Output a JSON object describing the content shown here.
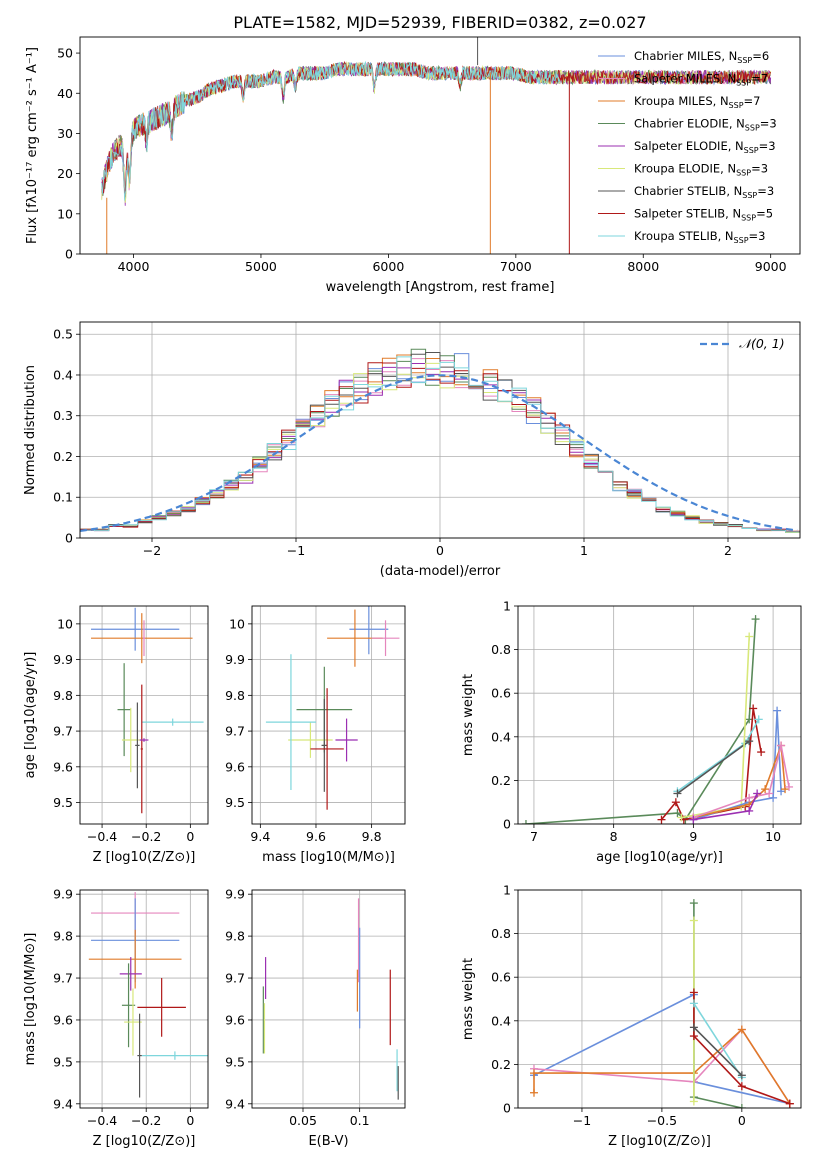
{
  "figure_title": "PLATE=1582, MJD=52939, FIBERID=0382, z=0.027",
  "colors": {
    "Chabrier MILES": "#6a8fdc",
    "Salpeter MILES": "#e586bd",
    "Kroupa MILES": "#e07b2a",
    "Chabrier ELODIE": "#5a8a5a",
    "Salpeter ELODIE": "#9b2fb2",
    "Kroupa ELODIE": "#d8e87a",
    "Chabrier STELIB": "#555555",
    "Salpeter STELIB": "#b01818",
    "Kroupa STELIB": "#7ed6dc",
    "normal": "#4a86d4"
  },
  "chart_data": [
    {
      "id": "spectrum",
      "type": "line",
      "title": "PLATE=1582, MJD=52939, FIBERID=0382, z=0.027",
      "xlabel": "wavelength [Angstrom, rest frame]",
      "ylabel": "Flux [fλ10⁻¹⁷ erg cm⁻² s⁻¹ A⁻¹]",
      "xlim": [
        3580,
        9230
      ],
      "ylim": [
        0,
        54
      ],
      "xticks": [
        4000,
        5000,
        6000,
        7000,
        8000,
        9000
      ],
      "yticks": [
        0,
        10,
        20,
        30,
        40,
        50
      ],
      "legend_position": "right",
      "continuum_x": [
        3750,
        3800,
        3850,
        3900,
        3950,
        4000,
        4050,
        4100,
        4200,
        4300,
        4400,
        4500,
        4600,
        4700,
        4800,
        4900,
        5000,
        5100,
        5200,
        5300,
        5400,
        5500,
        5600,
        5700,
        5800,
        5900,
        6000,
        6100,
        6200,
        6300,
        6400,
        6500,
        6600,
        6700,
        6800,
        6900,
        7000,
        7100,
        7200,
        7300,
        7400
      ],
      "continuum_y": [
        16,
        22,
        26,
        27,
        26,
        31,
        32,
        33,
        34,
        36,
        38,
        39,
        41,
        42,
        43,
        43,
        43,
        44,
        44,
        45,
        45,
        45,
        46,
        46,
        46,
        46,
        46,
        46,
        46,
        45,
        45,
        45,
        45,
        45,
        45,
        45,
        45,
        44,
        44,
        44,
        44
      ],
      "series": [
        {
          "name": "Chabrier MILES, N_SSP=6"
        },
        {
          "name": "Salpeter MILES, N_SSP=7"
        },
        {
          "name": "Kroupa MILES, N_SSP=7"
        },
        {
          "name": "Chabrier ELODIE, N_SSP=3"
        },
        {
          "name": "Salpeter ELODIE, N_SSP=3"
        },
        {
          "name": "Kroupa ELODIE, N_SSP=3"
        },
        {
          "name": "Chabrier STELIB, N_SSP=3"
        },
        {
          "name": "Salpeter STELIB, N_SSP=5"
        },
        {
          "name": "Kroupa STELIB, N_SSP=3"
        }
      ]
    },
    {
      "id": "residuals",
      "type": "line",
      "xlabel": "(data-model)/error",
      "ylabel": "Normed distribution",
      "xlim": [
        -2.5,
        2.5
      ],
      "ylim": [
        0,
        0.53
      ],
      "xticks": [
        -2,
        -1,
        0,
        1,
        2
      ],
      "yticks": [
        0.0,
        0.1,
        0.2,
        0.3,
        0.4,
        0.5
      ],
      "grid": true,
      "legend_position": "top-right",
      "reference_curve": {
        "name": "N(0,1)",
        "type": "gaussian",
        "mean": 0,
        "sigma": 1
      },
      "bin_width": 0.1,
      "histogram_mean_profile": [
        0.02,
        0.02,
        0.03,
        0.03,
        0.04,
        0.05,
        0.06,
        0.07,
        0.09,
        0.11,
        0.13,
        0.15,
        0.18,
        0.21,
        0.24,
        0.27,
        0.3,
        0.33,
        0.35,
        0.37,
        0.39,
        0.4,
        0.41,
        0.42,
        0.42,
        0.41,
        0.41,
        0.4,
        0.38,
        0.36,
        0.34,
        0.31,
        0.28,
        0.25,
        0.22,
        0.19,
        0.16,
        0.13,
        0.11,
        0.09,
        0.07,
        0.06,
        0.05,
        0.04,
        0.035,
        0.03,
        0.025,
        0.02,
        0.02,
        0.015
      ]
    },
    {
      "id": "age_vs_Z",
      "type": "scatter",
      "xlabel": "Z [log10(Z/Z⊙)]",
      "ylabel": "age  [log10(age/yr)]",
      "xlim": [
        -0.5,
        0.08
      ],
      "ylim": [
        9.44,
        10.05
      ],
      "xticks": [
        -0.4,
        -0.2,
        0.0
      ],
      "yticks": [
        9.5,
        9.6,
        9.7,
        9.8,
        9.9,
        10.0
      ],
      "grid": true,
      "points": [
        {
          "series": "Chabrier MILES",
          "x": -0.25,
          "y": 9.985,
          "xerr": 0.2,
          "yerr": 0.06
        },
        {
          "series": "Kroupa MILES",
          "x": -0.22,
          "y": 9.96,
          "xerr": 0.23,
          "yerr": 0.07
        },
        {
          "series": "Salpeter MILES",
          "x": -0.21,
          "y": 9.96,
          "xerr": 0.005,
          "yerr": 0.05
        },
        {
          "series": "Chabrier ELODIE",
          "x": -0.3,
          "y": 9.76,
          "xerr": 0.03,
          "yerr": 0.13
        },
        {
          "series": "Kroupa ELODIE",
          "x": -0.27,
          "y": 9.675,
          "xerr": 0.04,
          "yerr": 0.09
        },
        {
          "series": "Chabrier STELIB",
          "x": -0.24,
          "y": 9.66,
          "xerr": 0.01,
          "yerr": 0.12
        },
        {
          "series": "Kroupa STELIB",
          "x": -0.08,
          "y": 9.725,
          "xerr": 0.14,
          "yerr": 0.01
        },
        {
          "series": "Salpeter STELIB",
          "x": -0.22,
          "y": 9.65,
          "xerr": 0.005,
          "yerr": 0.18
        },
        {
          "series": "Salpeter ELODIE",
          "x": -0.21,
          "y": 9.675,
          "xerr": 0.02,
          "yerr": 0.005
        }
      ]
    },
    {
      "id": "age_vs_mass",
      "type": "scatter",
      "xlabel": "mass [log10(M/M⊙)]",
      "ylabel": "",
      "xlim": [
        9.37,
        9.92
      ],
      "ylim": [
        9.44,
        10.05
      ],
      "xticks": [
        9.4,
        9.6,
        9.8
      ],
      "yticks": [
        9.5,
        9.6,
        9.7,
        9.8,
        9.9,
        10.0
      ],
      "grid": true,
      "points": [
        {
          "series": "Chabrier MILES",
          "x": 9.79,
          "y": 9.985,
          "xerr": 0.07,
          "yerr": 0.07
        },
        {
          "series": "Kroupa MILES",
          "x": 9.74,
          "y": 9.96,
          "xerr": 0.1,
          "yerr": 0.08
        },
        {
          "series": "Salpeter MILES",
          "x": 9.85,
          "y": 9.96,
          "xerr": 0.05,
          "yerr": 0.05
        },
        {
          "series": "Chabrier ELODIE",
          "x": 9.63,
          "y": 9.76,
          "xerr": 0.1,
          "yerr": 0.12
        },
        {
          "series": "Kroupa ELODIE",
          "x": 9.58,
          "y": 9.675,
          "xerr": 0.08,
          "yerr": 0.05
        },
        {
          "series": "Chabrier STELIB",
          "x": 9.63,
          "y": 9.66,
          "xerr": 0.01,
          "yerr": 0.13
        },
        {
          "series": "Kroupa STELIB",
          "x": 9.51,
          "y": 9.725,
          "xerr": 0.09,
          "yerr": 0.19
        },
        {
          "series": "Salpeter STELIB",
          "x": 9.64,
          "y": 9.65,
          "xerr": 0.06,
          "yerr": 0.17
        },
        {
          "series": "Salpeter ELODIE",
          "x": 9.71,
          "y": 9.675,
          "xerr": 0.04,
          "yerr": 0.06
        }
      ]
    },
    {
      "id": "weight_vs_age",
      "type": "line",
      "xlabel": "age  [log10(age/yr)]",
      "ylabel": "mass weight",
      "xlim": [
        6.8,
        10.35
      ],
      "ylim": [
        0,
        1.0
      ],
      "xticks": [
        7,
        8,
        9,
        10
      ],
      "yticks": [
        0.0,
        0.2,
        0.4,
        0.6,
        0.8,
        1.0
      ],
      "grid": true,
      "series": [
        {
          "color_key": "Chabrier ELODIE",
          "x": [
            6.9,
            8.8,
            8.9,
            9.7,
            9.78
          ],
          "y": [
            0.0,
            0.05,
            0.02,
            0.48,
            0.94
          ]
        },
        {
          "color_key": "Salpeter STELIB",
          "x": [
            8.6,
            8.78,
            8.88,
            9.65,
            9.75,
            9.85
          ],
          "y": [
            0.02,
            0.1,
            0.02,
            0.08,
            0.53,
            0.33
          ]
        },
        {
          "color_key": "Kroupa STELIB",
          "x": [
            8.8,
            9.65,
            9.82
          ],
          "y": [
            0.15,
            0.37,
            0.48
          ]
        },
        {
          "color_key": "Chabrier STELIB",
          "x": [
            8.8,
            9.7
          ],
          "y": [
            0.14,
            0.38
          ]
        },
        {
          "color_key": "Kroupa ELODIE",
          "x": [
            8.85,
            9.6,
            9.7
          ],
          "y": [
            0.03,
            0.08,
            0.86
          ]
        },
        {
          "color_key": "Chabrier MILES",
          "x": [
            9.0,
            9.7,
            10.0,
            10.05,
            10.1
          ],
          "y": [
            0.02,
            0.1,
            0.12,
            0.52,
            0.15
          ]
        },
        {
          "color_key": "Kroupa MILES",
          "x": [
            9.0,
            9.7,
            9.9,
            10.1,
            10.15
          ],
          "y": [
            0.03,
            0.09,
            0.16,
            0.36,
            0.16
          ]
        },
        {
          "color_key": "Salpeter MILES",
          "x": [
            9.0,
            9.7,
            9.95,
            10.1,
            10.2
          ],
          "y": [
            0.03,
            0.12,
            0.14,
            0.36,
            0.17
          ]
        },
        {
          "color_key": "Salpeter ELODIE",
          "x": [
            9.0,
            9.7,
            9.8
          ],
          "y": [
            0.02,
            0.06,
            0.14
          ]
        }
      ]
    },
    {
      "id": "mass_vs_Z",
      "type": "scatter",
      "xlabel": "Z [log10(Z/Z⊙)]",
      "ylabel": "mass [log10(M/M⊙)]",
      "xlim": [
        -0.5,
        0.08
      ],
      "ylim": [
        9.39,
        9.91
      ],
      "xticks": [
        -0.4,
        -0.2,
        0.0
      ],
      "yticks": [
        9.4,
        9.5,
        9.6,
        9.7,
        9.8,
        9.9
      ],
      "grid": true,
      "points": [
        {
          "series": "Salpeter MILES",
          "x": -0.25,
          "y": 9.855,
          "xerr": 0.2,
          "yerr": 0.05
        },
        {
          "series": "Chabrier MILES",
          "x": -0.25,
          "y": 9.79,
          "xerr": 0.2,
          "yerr": 0.1
        },
        {
          "series": "Kroupa MILES",
          "x": -0.25,
          "y": 9.745,
          "xerr": 0.21,
          "yerr": 0.07
        },
        {
          "series": "Salpeter ELODIE",
          "x": -0.27,
          "y": 9.71,
          "xerr": 0.05,
          "yerr": 0.04
        },
        {
          "series": "Chabrier ELODIE",
          "x": -0.28,
          "y": 9.635,
          "xerr": 0.03,
          "yerr": 0.1
        },
        {
          "series": "Salpeter STELIB",
          "x": -0.13,
          "y": 9.63,
          "xerr": 0.11,
          "yerr": 0.07
        },
        {
          "series": "Kroupa ELODIE",
          "x": -0.26,
          "y": 9.595,
          "xerr": 0.04,
          "yerr": 0.08
        },
        {
          "series": "Kroupa STELIB",
          "x": -0.07,
          "y": 9.515,
          "xerr": 0.15,
          "yerr": 0.01
        },
        {
          "series": "Chabrier STELIB",
          "x": -0.23,
          "y": 9.515,
          "xerr": 0.01,
          "yerr": 0.1
        }
      ]
    },
    {
      "id": "mass_vs_EBV",
      "type": "scatter",
      "xlabel": "E(B-V)",
      "ylabel": "",
      "xlim": [
        0.005,
        0.14
      ],
      "ylim": [
        9.39,
        9.91
      ],
      "xticks": [
        0.05,
        0.1
      ],
      "yticks": [
        9.4,
        9.5,
        9.6,
        9.7,
        9.8,
        9.9
      ],
      "grid": true,
      "points": [
        {
          "series": "Salpeter MILES",
          "x": 0.099,
          "y": 9.79,
          "xerr": 0.0,
          "yerr": 0.1
        },
        {
          "series": "Chabrier MILES",
          "x": 0.1,
          "y": 9.7,
          "xerr": 0.0,
          "yerr": 0.12
        },
        {
          "series": "Kroupa MILES",
          "x": 0.098,
          "y": 9.67,
          "xerr": 0.0,
          "yerr": 0.05
        },
        {
          "series": "Salpeter ELODIE",
          "x": 0.017,
          "y": 9.7,
          "xerr": 0.0,
          "yerr": 0.05
        },
        {
          "series": "Chabrier ELODIE",
          "x": 0.015,
          "y": 9.6,
          "xerr": 0.0,
          "yerr": 0.08
        },
        {
          "series": "Kroupa ELODIE",
          "x": 0.016,
          "y": 9.58,
          "xerr": 0.0,
          "yerr": 0.06
        },
        {
          "series": "Salpeter STELIB",
          "x": 0.127,
          "y": 9.63,
          "xerr": 0.0,
          "yerr": 0.09
        },
        {
          "series": "Kroupa STELIB",
          "x": 0.133,
          "y": 9.48,
          "xerr": 0.0,
          "yerr": 0.05
        },
        {
          "series": "Chabrier STELIB",
          "x": 0.134,
          "y": 9.45,
          "xerr": 0.0,
          "yerr": 0.04
        }
      ]
    },
    {
      "id": "weight_vs_Z",
      "type": "line",
      "xlabel": "Z [log10(Z/Z⊙)]",
      "ylabel": "mass weight",
      "xlim": [
        -1.4,
        0.37
      ],
      "ylim": [
        0,
        1.0
      ],
      "xticks": [
        -1.0,
        -0.5,
        0.0
      ],
      "yticks": [
        0.0,
        0.2,
        0.4,
        0.6,
        0.8,
        1.0
      ],
      "grid": true,
      "series": [
        {
          "color_key": "Chabrier MILES",
          "x": [
            -1.3,
            -0.3,
            -0.3,
            0.3
          ],
          "y": [
            0.15,
            0.52,
            0.12,
            0.02
          ]
        },
        {
          "color_key": "Salpeter MILES",
          "x": [
            -1.3,
            -0.3,
            0.0,
            0.3
          ],
          "y": [
            0.18,
            0.12,
            0.36,
            0.02
          ]
        },
        {
          "color_key": "Kroupa MILES",
          "x": [
            -1.3,
            -1.3,
            -0.3,
            0.0,
            0.3
          ],
          "y": [
            0.07,
            0.16,
            0.16,
            0.36,
            0.02
          ]
        },
        {
          "color_key": "Chabrier ELODIE",
          "x": [
            -0.3,
            -0.3,
            0.0
          ],
          "y": [
            0.94,
            0.05,
            0.0
          ]
        },
        {
          "color_key": "Kroupa ELODIE",
          "x": [
            -0.3,
            -0.3
          ],
          "y": [
            0.86,
            0.03
          ]
        },
        {
          "color_key": "Salpeter STELIB",
          "x": [
            -0.3,
            -0.3,
            0.0,
            0.3
          ],
          "y": [
            0.53,
            0.33,
            0.1,
            0.02
          ]
        },
        {
          "color_key": "Kroupa STELIB",
          "x": [
            -0.3,
            0.0
          ],
          "y": [
            0.48,
            0.14
          ]
        },
        {
          "color_key": "Chabrier STELIB",
          "x": [
            -0.3,
            0.0
          ],
          "y": [
            0.37,
            0.15
          ]
        }
      ]
    }
  ]
}
